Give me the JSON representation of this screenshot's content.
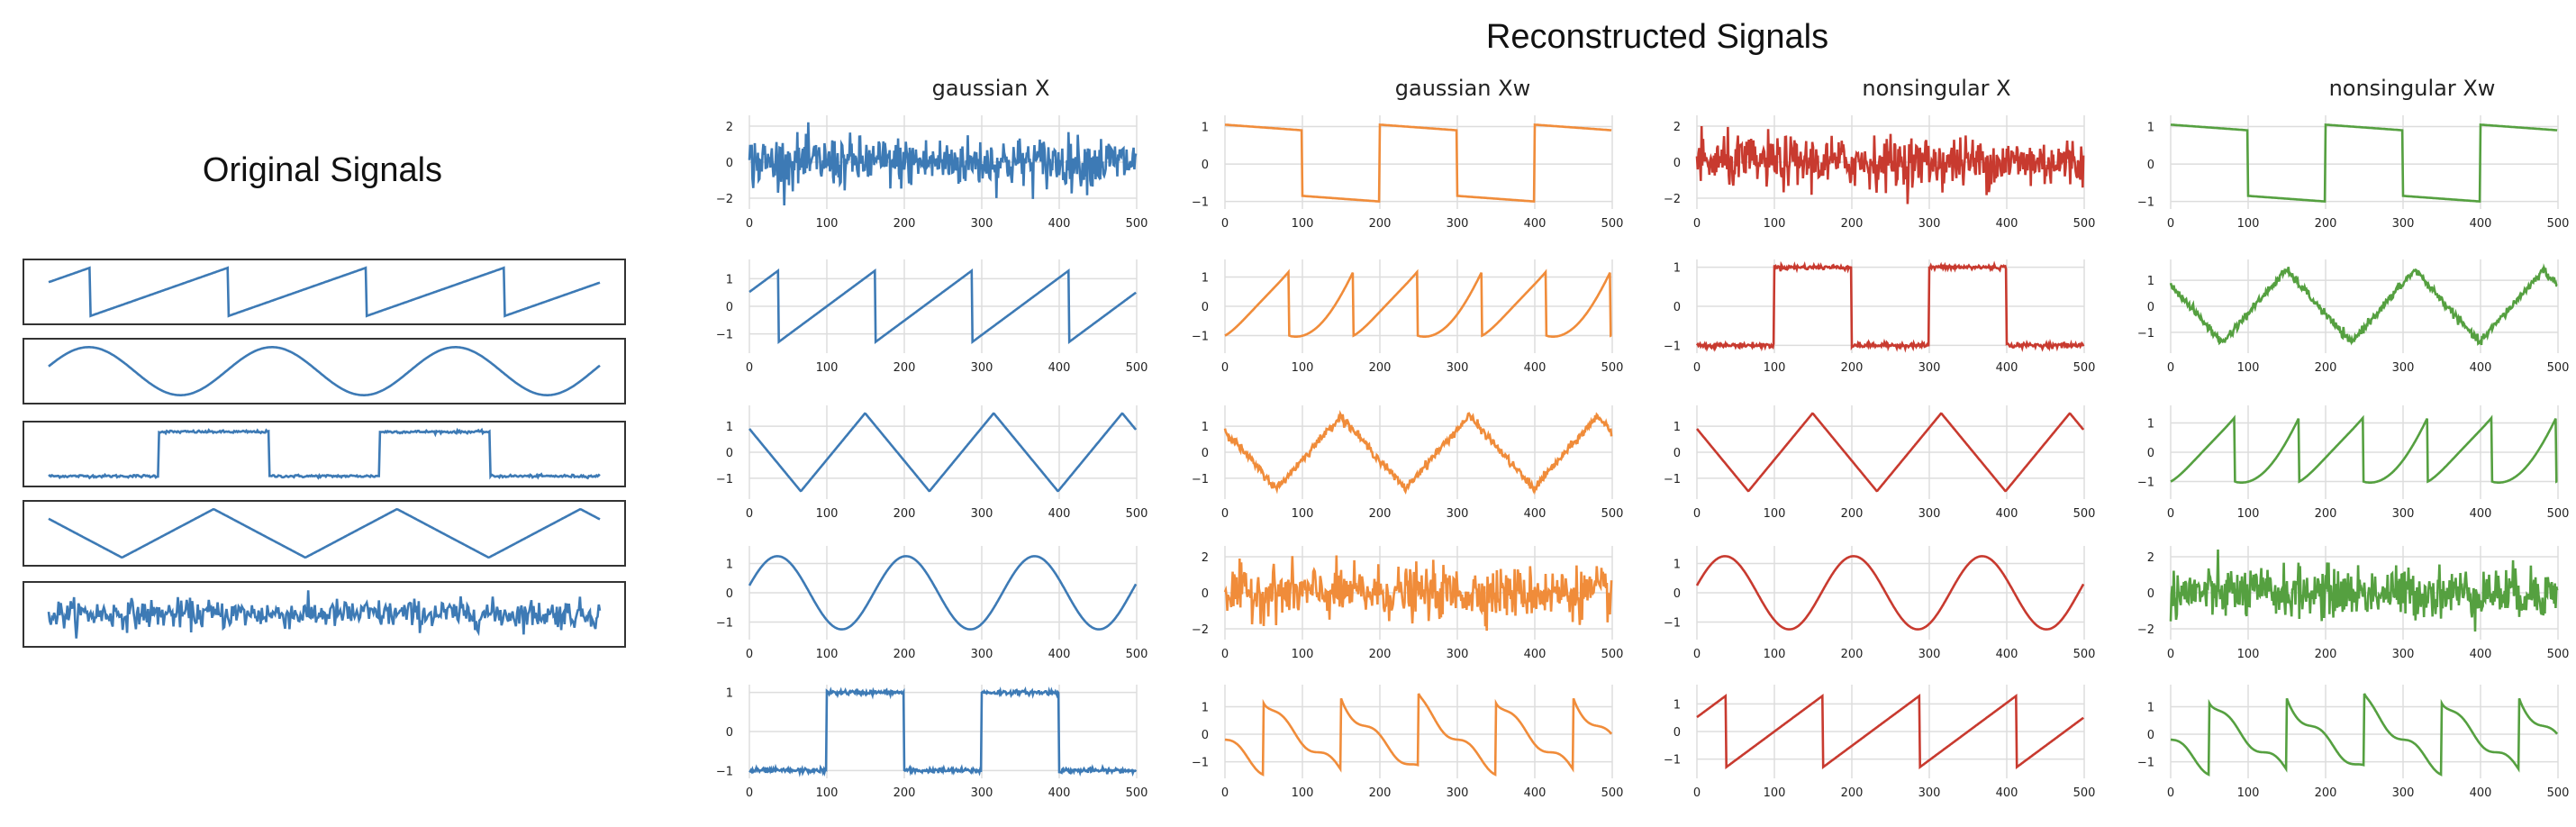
{
  "titles": {
    "original": "Original Signals",
    "reconstructed": "Reconstructed Signals"
  },
  "colors": {
    "blue": "#3d7ab5",
    "orange": "#f08c3a",
    "red": "#c83a2f",
    "green": "#55a040",
    "grid": "#dddddd",
    "frame": "#333333"
  },
  "chart_data": [
    {
      "type": "line",
      "title": "Original Signals",
      "x": [
        0,
        500
      ],
      "series": [
        {
          "kind": "sawtooth",
          "period": 125,
          "phase": 0.5
        },
        {
          "kind": "sine",
          "period": 166
        },
        {
          "kind": "square",
          "period": 250,
          "phase": 0.77
        },
        {
          "kind": "triangle",
          "period": 166
        },
        {
          "kind": "noise"
        }
      ]
    },
    {
      "type": "line",
      "title": "gaussian X",
      "xticks": [
        "0",
        "100",
        "200",
        "300",
        "400",
        "500"
      ],
      "xlim": [
        0,
        500
      ],
      "rows": [
        {
          "kind": "noise",
          "yticks": [
            2,
            0,
            -2
          ],
          "ylim": [
            -2.6,
            2.6
          ]
        },
        {
          "kind": "sawtooth",
          "yticks": [
            1,
            0,
            -1
          ],
          "ylim": [
            -1.7,
            1.7
          ]
        },
        {
          "kind": "triangle",
          "yticks": [
            1,
            0,
            -1
          ],
          "ylim": [
            -1.8,
            1.8
          ]
        },
        {
          "kind": "sine",
          "yticks": [
            1,
            0,
            -1
          ],
          "ylim": [
            -1.6,
            1.6
          ]
        },
        {
          "kind": "square",
          "yticks": [
            1,
            0,
            -1
          ],
          "ylim": [
            -1.2,
            1.2
          ]
        }
      ]
    },
    {
      "type": "line",
      "title": "gaussian Xw",
      "xticks": [
        "0",
        "100",
        "200",
        "300",
        "400",
        "500"
      ],
      "xlim": [
        0,
        500
      ],
      "rows": [
        {
          "kind": "square-ramp",
          "yticks": [
            1,
            0,
            -1
          ],
          "ylim": [
            -1.2,
            1.3
          ]
        },
        {
          "kind": "mix",
          "yticks": [
            1,
            0,
            -1
          ],
          "ylim": [
            -1.6,
            1.6
          ]
        },
        {
          "kind": "triangle-noisy",
          "yticks": [
            1,
            0,
            -1
          ],
          "ylim": [
            -1.8,
            1.8
          ]
        },
        {
          "kind": "noise",
          "yticks": [
            2,
            0,
            -2
          ],
          "ylim": [
            -2.6,
            2.6
          ]
        },
        {
          "kind": "mix2",
          "yticks": [
            1,
            0,
            -1
          ],
          "ylim": [
            -1.6,
            1.8
          ]
        }
      ]
    },
    {
      "type": "line",
      "title": "nonsingular X",
      "xticks": [
        "0",
        "100",
        "200",
        "300",
        "400",
        "500"
      ],
      "xlim": [
        0,
        500
      ],
      "rows": [
        {
          "kind": "noise",
          "yticks": [
            2,
            0,
            -2
          ],
          "ylim": [
            -2.6,
            2.6
          ]
        },
        {
          "kind": "square",
          "yticks": [
            1,
            0,
            -1
          ],
          "ylim": [
            -1.2,
            1.2
          ]
        },
        {
          "kind": "triangle",
          "yticks": [
            1,
            0,
            -1
          ],
          "ylim": [
            -1.8,
            1.8
          ]
        },
        {
          "kind": "sine",
          "yticks": [
            1,
            0,
            -1
          ],
          "ylim": [
            -1.6,
            1.6
          ]
        },
        {
          "kind": "sawtooth",
          "yticks": [
            1,
            0,
            -1
          ],
          "ylim": [
            -1.7,
            1.7
          ]
        }
      ]
    },
    {
      "type": "line",
      "title": "nonsingular Xw",
      "xticks": [
        "0",
        "100",
        "200",
        "300",
        "400",
        "500"
      ],
      "xlim": [
        0,
        500
      ],
      "rows": [
        {
          "kind": "square-ramp",
          "yticks": [
            1,
            0,
            -1
          ],
          "ylim": [
            -1.2,
            1.3
          ]
        },
        {
          "kind": "triangle-noisy",
          "yticks": [
            1,
            0,
            -1
          ],
          "ylim": [
            -1.8,
            1.8
          ]
        },
        {
          "kind": "mix",
          "yticks": [
            1,
            0,
            -1
          ],
          "ylim": [
            -1.6,
            1.6
          ]
        },
        {
          "kind": "noise",
          "yticks": [
            2,
            0,
            -2
          ],
          "ylim": [
            -2.6,
            2.6
          ]
        },
        {
          "kind": "mix2",
          "yticks": [
            1,
            0,
            -1
          ],
          "ylim": [
            -1.6,
            1.8
          ]
        }
      ]
    }
  ]
}
